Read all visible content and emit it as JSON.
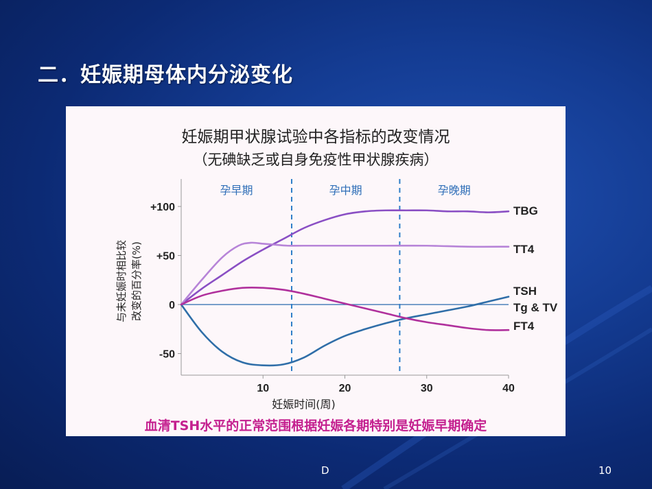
{
  "slide": {
    "title": "二．妊娠期母体内分泌变化",
    "footer_center": "D",
    "page_number": "10"
  },
  "colors": {
    "TBG": "#8a4fc4",
    "TT4": "#b784d8",
    "TSH": "#2f6ea8",
    "FT4": "#b0309c",
    "baseline": "#3b76b5",
    "phase_divider": "#2f7fc8",
    "phase_label": "#2f6fb8",
    "bottom_note": "#c4208f"
  },
  "chart_data": {
    "type": "line",
    "title": "妊娠期甲状腺试验中各指标的改变情况",
    "subtitle": "（无碘缺乏或自身免疫性甲状腺疾病）",
    "xlabel": "妊娠时间(周)",
    "ylabel": "与未妊娠时相比较改变的百分率(%)",
    "xlim": [
      0,
      40
    ],
    "ylim": [
      -72,
      128
    ],
    "x_ticks": [
      "10",
      "20",
      "30",
      "40"
    ],
    "x_tick_values": [
      10,
      20,
      30,
      40
    ],
    "y_ticks": [
      "+100",
      "+50",
      "0",
      "-50"
    ],
    "y_tick_values": [
      100,
      50,
      0,
      -50
    ],
    "phases": [
      {
        "label": "孕早期",
        "from": 0,
        "to": 13.5
      },
      {
        "label": "孕中期",
        "from": 13.5,
        "to": 26.7
      },
      {
        "label": "孕晚期",
        "from": 26.7,
        "to": 40
      }
    ],
    "phase_dividers": [
      13.5,
      26.7
    ],
    "grid": false,
    "series": [
      {
        "name": "TBG",
        "key": "TBG",
        "x": [
          0,
          2.5,
          5,
          7.5,
          10,
          12.5,
          15,
          17.5,
          20,
          22.5,
          25,
          27.5,
          30,
          32.5,
          35,
          37.5,
          40
        ],
        "y": [
          0,
          16,
          30,
          44,
          56,
          67,
          78,
          86,
          92,
          95,
          96,
          96,
          96,
          95,
          95,
          94,
          95
        ]
      },
      {
        "name": "TT4",
        "key": "TT4",
        "x": [
          0,
          2.5,
          5,
          7,
          8.5,
          10,
          11.5,
          13,
          15,
          20,
          25,
          30,
          35,
          40
        ],
        "y": [
          0,
          25,
          48,
          60,
          63,
          62,
          61,
          60,
          60,
          60,
          60,
          60,
          59,
          59
        ]
      },
      {
        "name": "TSH",
        "key": "TSH",
        "x": [
          0,
          2.5,
          5,
          7.5,
          10,
          12.5,
          15,
          17.5,
          20,
          22.5,
          25,
          27.5,
          30,
          32.5,
          35,
          37.5,
          40
        ],
        "y": [
          0,
          -28,
          -48,
          -59,
          -62,
          -61,
          -54,
          -42,
          -32,
          -25,
          -19,
          -14,
          -10,
          -6,
          -2,
          3,
          8
        ]
      },
      {
        "name": "FT4",
        "key": "FT4",
        "x": [
          0,
          2.5,
          5,
          7.5,
          10,
          12.5,
          15,
          17.5,
          20,
          22.5,
          25,
          27.5,
          30,
          32.5,
          35,
          37.5,
          40
        ],
        "y": [
          0,
          9,
          14,
          17,
          17,
          15,
          11,
          6,
          1,
          -4,
          -9,
          -14,
          -18,
          -21,
          -24,
          -26,
          -26
        ]
      }
    ],
    "series_labels": [
      "TBG",
      "TT4",
      "TSH",
      "Tg & TV",
      "FT4"
    ],
    "note": "血清TSH水平的正常范围根据妊娠各期特别是妊娠早期确定"
  }
}
